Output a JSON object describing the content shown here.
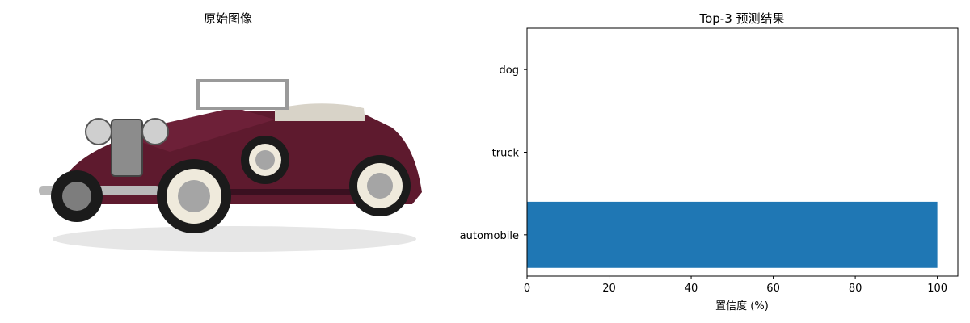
{
  "left_panel": {
    "title": "原始图像"
  },
  "chart_data": {
    "type": "bar",
    "orientation": "horizontal",
    "title": "Top-3 预测结果",
    "xlabel": "置信度 (%)",
    "ylabel": "",
    "categories": [
      "automobile",
      "truck",
      "dog"
    ],
    "values": [
      100.0,
      0.0,
      0.0
    ],
    "xlim": [
      0,
      105
    ],
    "xticks": [
      0,
      20,
      40,
      60,
      80,
      100
    ],
    "grid": false,
    "bar_color": "#1f77b4"
  }
}
